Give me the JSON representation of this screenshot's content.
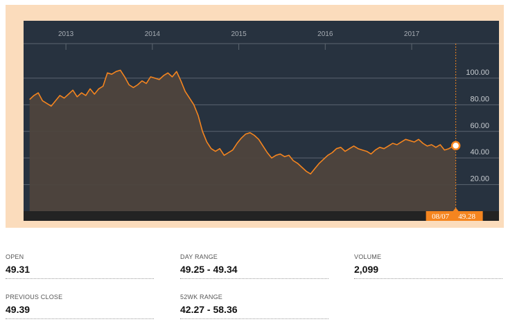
{
  "chart_data": {
    "type": "area",
    "x_labels": [
      "2013",
      "2014",
      "2015",
      "2016",
      "2017"
    ],
    "y_ticks": [
      "100.00",
      "80.00",
      "60.00",
      "40.00",
      "20.00"
    ],
    "ylim": [
      0,
      126
    ],
    "x_range": [
      "2012-09",
      "2017-08-07"
    ],
    "grid": true,
    "colors": {
      "line": "#f5851f",
      "fill": "#4e443d",
      "plot_bg": "#27323f",
      "axis_bar": "#232323"
    },
    "x": [
      2012.67,
      2012.72,
      2012.77,
      2012.82,
      2012.87,
      2012.92,
      2012.97,
      2013.02,
      2013.07,
      2013.12,
      2013.17,
      2013.22,
      2013.27,
      2013.32,
      2013.37,
      2013.42,
      2013.47,
      2013.52,
      2013.57,
      2013.62,
      2013.67,
      2013.72,
      2013.77,
      2013.82,
      2013.87,
      2013.92,
      2013.97,
      2014.02,
      2014.07,
      2014.12,
      2014.17,
      2014.22,
      2014.27,
      2014.32,
      2014.37,
      2014.42,
      2014.47,
      2014.52,
      2014.57,
      2014.62,
      2014.67,
      2014.72,
      2014.77,
      2014.82,
      2014.87,
      2014.92,
      2014.97,
      2015.02,
      2015.07,
      2015.12,
      2015.17,
      2015.22,
      2015.27,
      2015.32,
      2015.37,
      2015.42,
      2015.47,
      2015.52,
      2015.57,
      2015.62,
      2015.67,
      2015.72,
      2015.77,
      2015.82,
      2015.87,
      2015.92,
      2015.97,
      2016.02,
      2016.07,
      2016.12,
      2016.17,
      2016.22,
      2016.27,
      2016.32,
      2016.37,
      2016.42,
      2016.47,
      2016.52,
      2016.57,
      2016.62,
      2016.67,
      2016.72,
      2016.77,
      2016.82,
      2016.87,
      2016.92,
      2016.97,
      2017.02,
      2017.07,
      2017.12,
      2017.17,
      2017.22,
      2017.27,
      2017.32,
      2017.37,
      2017.42,
      2017.47,
      2017.52,
      2017.57,
      2017.6
    ],
    "y": [
      84,
      87,
      89,
      83,
      81,
      79,
      83,
      87,
      85,
      88,
      91,
      86,
      89,
      87,
      92,
      88,
      92,
      94,
      104,
      103,
      105,
      106,
      101,
      95,
      93,
      95,
      98,
      96,
      101,
      100,
      99,
      102,
      104,
      101,
      105,
      98,
      90,
      85,
      80,
      72,
      60,
      52,
      47,
      45,
      47,
      42,
      44,
      46,
      51,
      55,
      58,
      59,
      57,
      54,
      49,
      44,
      40,
      42,
      43,
      41,
      42,
      38,
      36,
      33,
      30,
      28,
      32,
      36,
      39,
      42,
      44,
      47,
      48,
      45,
      47,
      49,
      47,
      46,
      45,
      43,
      46,
      48,
      47,
      49,
      51,
      50,
      52,
      54,
      53,
      52,
      54,
      51,
      49,
      50,
      48,
      50,
      46,
      47,
      49,
      49.28
    ],
    "last_point": {
      "date": "08/07",
      "value": "49.28"
    }
  },
  "stats": [
    {
      "label": "OPEN",
      "value": "49.31"
    },
    {
      "label": "DAY RANGE",
      "value": "49.25 - 49.34"
    },
    {
      "label": "VOLUME",
      "value": "2,099"
    },
    {
      "label": "PREVIOUS CLOSE",
      "value": "49.39"
    },
    {
      "label": "52WK RANGE",
      "value": "42.27 - 58.36"
    }
  ]
}
